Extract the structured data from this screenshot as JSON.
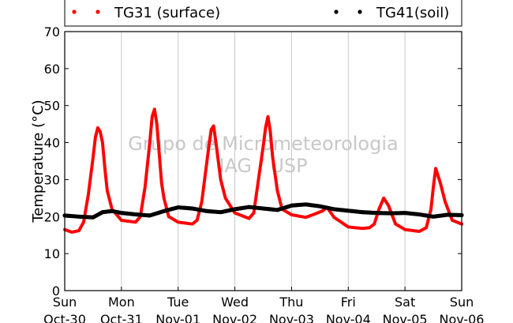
{
  "chart_data": {
    "type": "scatter",
    "ylabel": "Temperature (°C)",
    "ylim": [
      0,
      70
    ],
    "yticks": [
      0,
      10,
      20,
      30,
      40,
      50,
      60,
      70
    ],
    "xlim": [
      "2016-10-30",
      "2016-11-06"
    ],
    "xticks": [
      {
        "day": "Sun",
        "date": "Oct-30"
      },
      {
        "day": "Mon",
        "date": "Oct-31"
      },
      {
        "day": "Tue",
        "date": "Nov-01"
      },
      {
        "day": "Wed",
        "date": "Nov-02"
      },
      {
        "day": "Thu",
        "date": "Nov-03"
      },
      {
        "day": "Fri",
        "date": "Nov-04"
      },
      {
        "day": "Sat",
        "date": "Nov-05"
      },
      {
        "day": "Sun",
        "date": "Nov-06"
      }
    ],
    "grid": "vertical",
    "legend_position": "top",
    "watermark": [
      "Grupo de Micrometeorologia",
      "IAG / USP"
    ],
    "series": [
      {
        "name": "TG31 (surface)",
        "color": "#ff0000",
        "x": [
          "Oct-30 00:00",
          "Oct-30 03:00",
          "Oct-30 06:00",
          "Oct-30 08:00",
          "Oct-30 10:00",
          "Oct-30 12:00",
          "Oct-30 13:00",
          "Oct-30 14:00",
          "Oct-30 15:00",
          "Oct-30 16:00",
          "Oct-30 17:00",
          "Oct-30 18:00",
          "Oct-30 20:00",
          "Oct-31 00:00",
          "Oct-31 06:00",
          "Oct-31 08:00",
          "Oct-31 10:00",
          "Oct-31 12:00",
          "Oct-31 13:00",
          "Oct-31 14:00",
          "Oct-31 15:00",
          "Oct-31 16:00",
          "Oct-31 17:00",
          "Oct-31 18:00",
          "Oct-31 20:00",
          "Nov-01 00:00",
          "Nov-01 06:00",
          "Nov-01 08:00",
          "Nov-01 10:00",
          "Nov-01 12:00",
          "Nov-01 13:00",
          "Nov-01 14:00",
          "Nov-01 15:00",
          "Nov-01 16:00",
          "Nov-01 18:00",
          "Nov-01 20:00",
          "Nov-02 00:00",
          "Nov-02 06:00",
          "Nov-02 08:00",
          "Nov-02 10:00",
          "Nov-02 12:00",
          "Nov-02 13:00",
          "Nov-02 14:00",
          "Nov-02 15:00",
          "Nov-02 16:00",
          "Nov-02 18:00",
          "Nov-02 20:00",
          "Nov-03 00:00",
          "Nov-03 06:00",
          "Nov-03 09:00",
          "Nov-03 11:00",
          "Nov-03 13:00",
          "Nov-03 15:00",
          "Nov-03 18:00",
          "Nov-04 00:00",
          "Nov-04 06:00",
          "Nov-04 09:00",
          "Nov-04 11:00",
          "Nov-04 13:00",
          "Nov-04 14:00",
          "Nov-04 15:00",
          "Nov-04 17:00",
          "Nov-04 20:00",
          "Nov-05 00:00",
          "Nov-05 06:00",
          "Nov-05 09:00",
          "Nov-05 11:00",
          "Nov-05 12:00",
          "Nov-05 13:00",
          "Nov-05 14:00",
          "Nov-05 15:00",
          "Nov-05 17:00",
          "Nov-05 20:00",
          "Nov-06 00:00"
        ],
        "y": [
          16.5,
          15.8,
          16.2,
          18.5,
          26,
          36,
          41.5,
          44,
          43,
          40,
          33,
          27,
          22,
          19,
          18.5,
          20,
          28,
          40,
          47,
          49,
          45,
          37,
          29,
          25,
          20,
          18.5,
          18,
          19,
          24,
          34,
          39,
          43.5,
          44.5,
          40,
          30,
          25,
          21,
          19.5,
          21,
          30,
          39,
          44,
          47,
          43,
          36,
          27,
          22,
          20.5,
          19.8,
          20.5,
          21,
          21.5,
          22.5,
          19.8,
          17.2,
          16.8,
          17,
          18,
          22,
          23.5,
          25,
          23,
          18,
          16.5,
          16,
          17,
          22,
          28,
          33,
          31,
          29,
          24,
          19,
          18
        ]
      },
      {
        "name": "TG41(soil)",
        "color": "#000000",
        "x": [
          "Oct-30 00:00",
          "Oct-30 06:00",
          "Oct-30 12:00",
          "Oct-30 16:00",
          "Oct-30 20:00",
          "Oct-31 00:00",
          "Oct-31 06:00",
          "Oct-31 12:00",
          "Oct-31 18:00",
          "Nov-01 00:00",
          "Nov-01 06:00",
          "Nov-01 12:00",
          "Nov-01 18:00",
          "Nov-02 00:00",
          "Nov-02 06:00",
          "Nov-02 12:00",
          "Nov-02 18:00",
          "Nov-03 00:00",
          "Nov-03 06:00",
          "Nov-03 12:00",
          "Nov-03 18:00",
          "Nov-04 00:00",
          "Nov-04 06:00",
          "Nov-04 12:00",
          "Nov-04 18:00",
          "Nov-05 00:00",
          "Nov-05 06:00",
          "Nov-05 12:00",
          "Nov-05 18:00",
          "Nov-06 00:00"
        ],
        "y": [
          20.3,
          20.0,
          19.8,
          21.2,
          21.5,
          21.0,
          20.6,
          20.3,
          21.5,
          22.5,
          22.2,
          21.5,
          21.2,
          22.0,
          22.6,
          22.2,
          21.8,
          23.0,
          23.3,
          22.8,
          22.0,
          21.6,
          21.2,
          21.0,
          20.9,
          21.0,
          20.6,
          20.0,
          20.5,
          20.4
        ]
      }
    ]
  }
}
